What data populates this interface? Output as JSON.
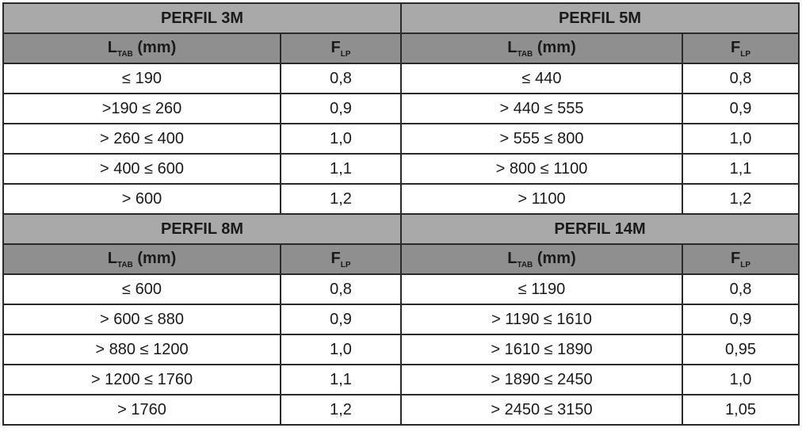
{
  "blocks": [
    {
      "left": {
        "title": "PERFIL 3M",
        "col_range_main": "L",
        "col_range_sub": "TAB",
        "col_range_unit": " (mm)",
        "col_factor_main": "F",
        "col_factor_sub": "LP",
        "rows": [
          [
            "≤ 190",
            "0,8"
          ],
          [
            ">190 ≤ 260",
            "0,9"
          ],
          [
            "> 260 ≤ 400",
            "1,0"
          ],
          [
            "> 400 ≤ 600",
            "1,1"
          ],
          [
            "> 600",
            "1,2"
          ]
        ]
      },
      "right": {
        "title": "PERFIL 5M",
        "col_range_main": "L",
        "col_range_sub": "TAB",
        "col_range_unit": " (mm)",
        "col_factor_main": "F",
        "col_factor_sub": "LP",
        "rows": [
          [
            "≤ 440",
            "0,8"
          ],
          [
            "> 440 ≤ 555",
            "0,9"
          ],
          [
            "> 555 ≤ 800",
            "1,0"
          ],
          [
            "> 800 ≤ 1100",
            "1,1"
          ],
          [
            "> 1100",
            "1,2"
          ]
        ]
      }
    },
    {
      "left": {
        "title": "PERFIL 8M",
        "col_range_main": "L",
        "col_range_sub": "TAB",
        "col_range_unit": " (mm)",
        "col_factor_main": "F",
        "col_factor_sub": "LP",
        "rows": [
          [
            "≤ 600",
            "0,8"
          ],
          [
            "> 600 ≤ 880",
            "0,9"
          ],
          [
            "> 880 ≤ 1200",
            "1,0"
          ],
          [
            "> 1200 ≤ 1760",
            "1,1"
          ],
          [
            "> 1760",
            "1,2"
          ]
        ]
      },
      "right": {
        "title": "PERFIL 14M",
        "col_range_main": "L",
        "col_range_sub": "TAB",
        "col_range_unit": " (mm)",
        "col_factor_main": "F",
        "col_factor_sub": "LP",
        "rows": [
          [
            "≤ 1190",
            "0,8"
          ],
          [
            "> 1190 ≤ 1610",
            "0,9"
          ],
          [
            "> 1610 ≤ 1890",
            "0,95"
          ],
          [
            "> 1890 ≤ 2450",
            "1,0"
          ],
          [
            "> 2450 ≤ 3150",
            "1,05"
          ]
        ]
      }
    }
  ],
  "colors": {
    "profile_header_bg": "#a9a9a9",
    "column_header_bg": "#8f8f8f",
    "border": "#2a2a2a",
    "cell_bg": "#ffffff"
  }
}
